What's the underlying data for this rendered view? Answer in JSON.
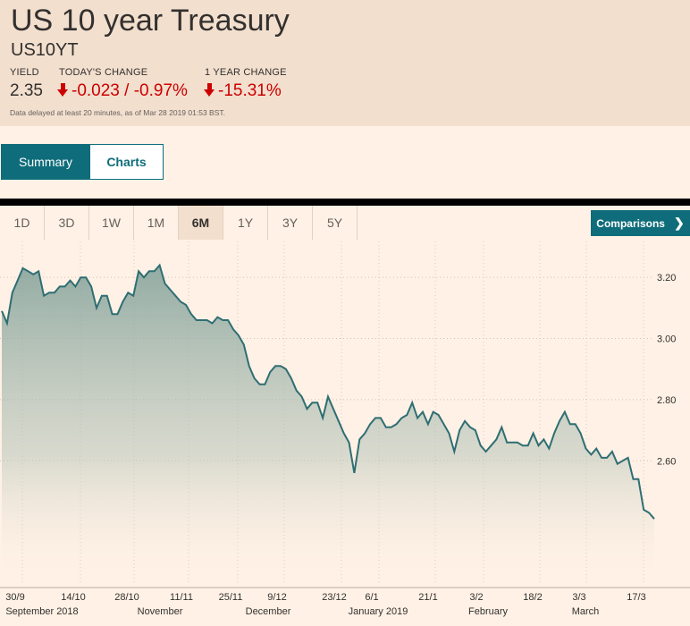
{
  "header": {
    "title": "US 10 year Treasury",
    "symbol": "US10YT",
    "yield_label": "YIELD",
    "yield_value": "2.35",
    "todays_change_label": "TODAY'S CHANGE",
    "todays_change_value": "-0.023 / -0.97%",
    "year_change_label": "1 YEAR CHANGE",
    "year_change_value": "-15.31%",
    "delay_note": "Data delayed at least 20 minutes, as of Mar 28 2019 01:53 BST."
  },
  "tabs": [
    {
      "label": "Summary",
      "active": true
    },
    {
      "label": "Charts",
      "active": false
    }
  ],
  "ranges": [
    "1D",
    "3D",
    "1W",
    "1M",
    "6M",
    "1Y",
    "3Y",
    "5Y"
  ],
  "active_range": "6M",
  "comparisons_label": "Comparisons",
  "colors": {
    "line": "#2e6e73",
    "accent": "#0f6d7b",
    "negative": "#cc0000"
  },
  "chart_data": {
    "type": "area",
    "title": "US 10 year Treasury",
    "ylim": [
      2.2,
      3.3
    ],
    "yticks": [
      2.6,
      2.8,
      3.0,
      3.2
    ],
    "ytick_labels": [
      "2.60",
      "2.80",
      "3.00",
      "3.20"
    ],
    "xtick_labels": [
      "30/9",
      "14/10",
      "28/10",
      "11/11",
      "25/11",
      "9/12",
      "23/12",
      "6/1",
      "21/1",
      "3/2",
      "18/2",
      "3/3",
      "17/3"
    ],
    "month_labels": [
      "September 2018",
      "November",
      "December",
      "January 2019",
      "February",
      "March"
    ],
    "series": [
      {
        "name": "US10YT",
        "values": [
          3.09,
          3.05,
          3.15,
          3.19,
          3.23,
          3.22,
          3.21,
          3.22,
          3.14,
          3.15,
          3.15,
          3.17,
          3.17,
          3.19,
          3.17,
          3.2,
          3.2,
          3.17,
          3.1,
          3.14,
          3.14,
          3.08,
          3.08,
          3.12,
          3.15,
          3.14,
          3.22,
          3.2,
          3.22,
          3.22,
          3.24,
          3.18,
          3.16,
          3.14,
          3.12,
          3.11,
          3.08,
          3.06,
          3.06,
          3.06,
          3.05,
          3.07,
          3.06,
          3.06,
          3.03,
          3.01,
          2.98,
          2.91,
          2.87,
          2.85,
          2.85,
          2.89,
          2.91,
          2.91,
          2.9,
          2.87,
          2.83,
          2.81,
          2.77,
          2.79,
          2.79,
          2.74,
          2.81,
          2.77,
          2.73,
          2.69,
          2.66,
          2.56,
          2.67,
          2.69,
          2.72,
          2.74,
          2.74,
          2.71,
          2.71,
          2.72,
          2.74,
          2.75,
          2.79,
          2.74,
          2.76,
          2.72,
          2.76,
          2.75,
          2.72,
          2.69,
          2.63,
          2.7,
          2.73,
          2.71,
          2.7,
          2.65,
          2.63,
          2.65,
          2.67,
          2.71,
          2.66,
          2.66,
          2.66,
          2.65,
          2.65,
          2.69,
          2.65,
          2.67,
          2.64,
          2.69,
          2.73,
          2.76,
          2.72,
          2.72,
          2.69,
          2.64,
          2.62,
          2.64,
          2.61,
          2.61,
          2.63,
          2.59,
          2.6,
          2.61,
          2.54,
          2.54,
          2.44,
          2.43,
          2.41
        ]
      }
    ]
  }
}
